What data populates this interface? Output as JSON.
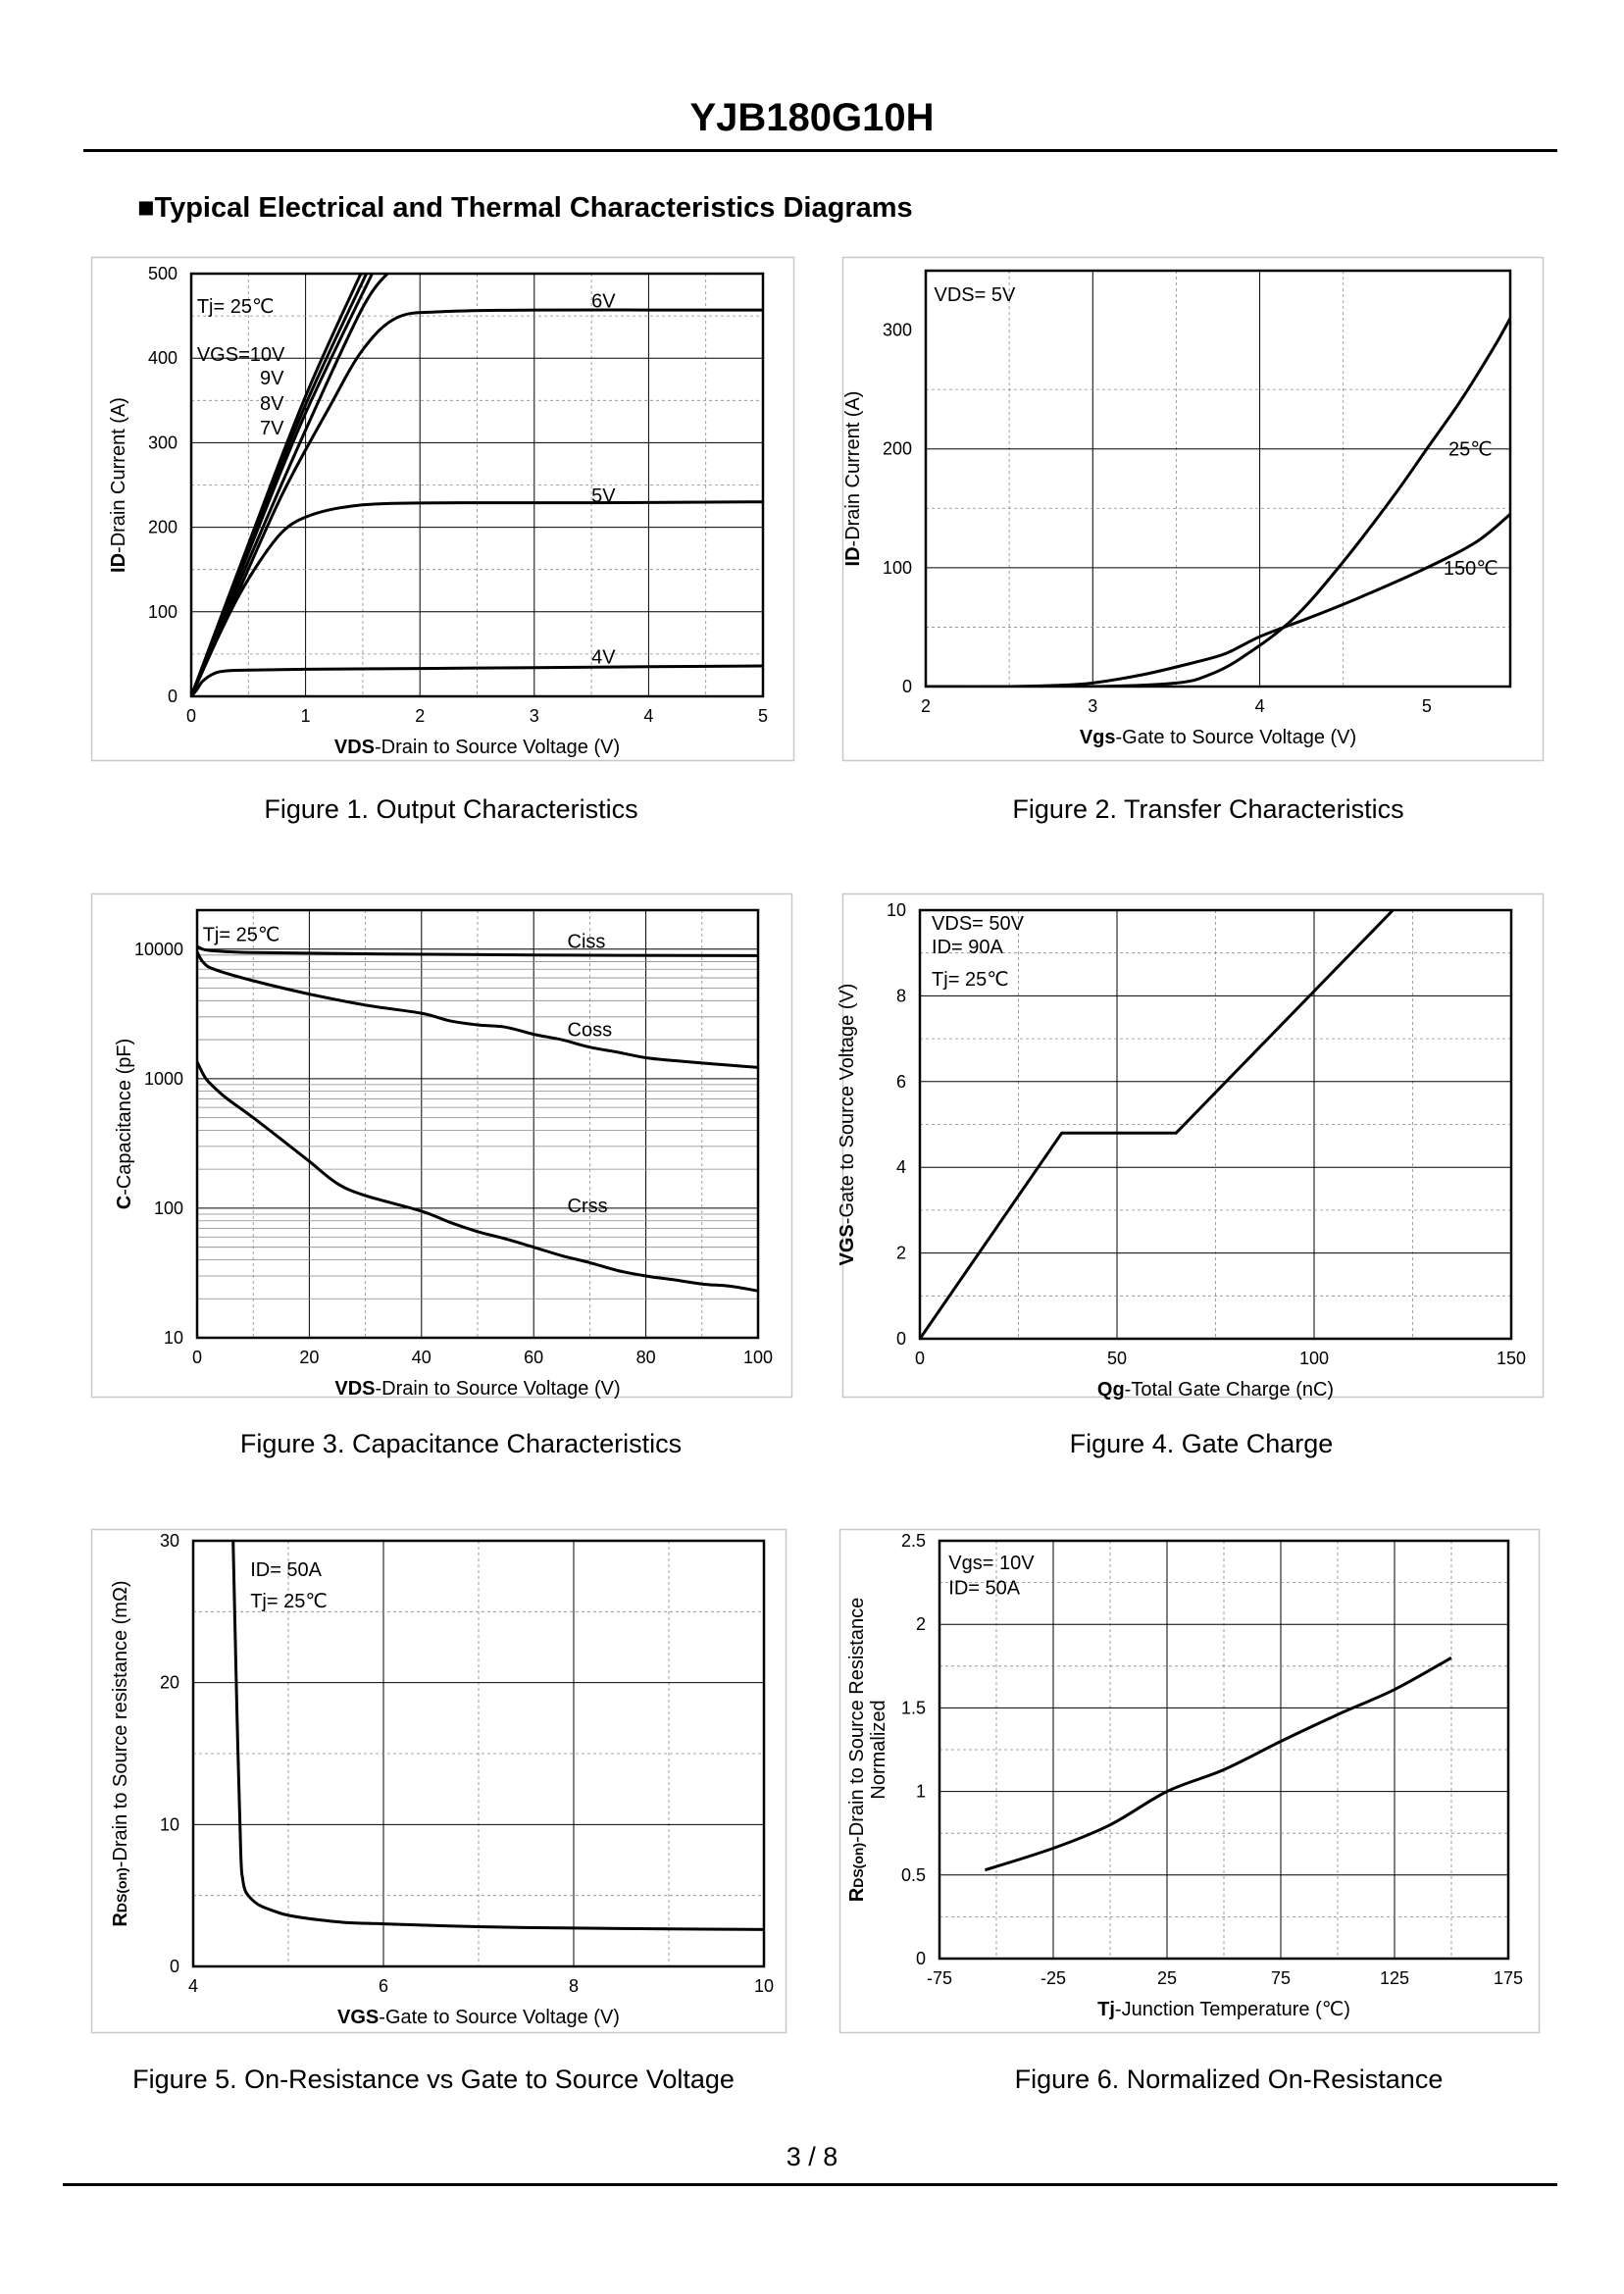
{
  "header": {
    "title": "YJB180G10H"
  },
  "section": {
    "heading": "■Typical Electrical and Thermal Characteristics Diagrams"
  },
  "footer": {
    "page": "3 / 8"
  },
  "chart_data": [
    {
      "id": "fig1",
      "type": "line",
      "caption": "Figure 1.  Output Characteristics",
      "xlabel": {
        "bold": "VDS",
        "rest": "-Drain to Source Voltage (V)"
      },
      "ylabel": {
        "bold": "ID",
        "rest": "-Drain Current (A)"
      },
      "xlim": [
        0,
        5
      ],
      "ylim": [
        0,
        500
      ],
      "xticks": [
        0,
        1,
        2,
        3,
        4,
        5
      ],
      "yticks": [
        0,
        100,
        200,
        300,
        400,
        500
      ],
      "grid": true,
      "annotations": [
        {
          "text": "Tj= 25℃",
          "x": 0.05,
          "y": 462,
          "anchor": "start"
        },
        {
          "text": "VGS=10V",
          "x": 0.05,
          "y": 405,
          "anchor": "start"
        },
        {
          "text": "9V",
          "x": 0.6,
          "y": 377,
          "anchor": "start"
        },
        {
          "text": "8V",
          "x": 0.6,
          "y": 347,
          "anchor": "start"
        },
        {
          "text": "7V",
          "x": 0.6,
          "y": 318,
          "anchor": "start"
        },
        {
          "text": "6V",
          "x": 3.5,
          "y": 468,
          "anchor": "start"
        },
        {
          "text": "5V",
          "x": 3.5,
          "y": 238,
          "anchor": "start"
        },
        {
          "text": "4V",
          "x": 3.5,
          "y": 47,
          "anchor": "start"
        }
      ],
      "series": [
        {
          "name": "VGS=10V",
          "x": [
            0,
            0.5,
            1,
            1.5
          ],
          "y": [
            0,
            180,
            355,
            505
          ]
        },
        {
          "name": "9V",
          "x": [
            0,
            0.5,
            1,
            1.55
          ],
          "y": [
            0,
            175,
            345,
            505
          ]
        },
        {
          "name": "8V",
          "x": [
            0,
            0.5,
            1,
            1.6
          ],
          "y": [
            0,
            170,
            335,
            505
          ]
        },
        {
          "name": "7V",
          "x": [
            0,
            0.5,
            1,
            1.5,
            1.75
          ],
          "y": [
            0,
            160,
            315,
            460,
            505
          ]
        },
        {
          "name": "6V",
          "x": [
            0,
            0.4,
            0.8,
            1.2,
            1.5,
            1.8,
            2.2,
            3,
            4,
            5
          ],
          "y": [
            0,
            120,
            240,
            340,
            410,
            448,
            455,
            457,
            457,
            457
          ]
        },
        {
          "name": "5V",
          "x": [
            0,
            0.2,
            0.4,
            0.6,
            0.8,
            1,
            1.3,
            1.7,
            2.5,
            3.5,
            5
          ],
          "y": [
            0,
            60,
            115,
            160,
            195,
            212,
            223,
            228,
            229,
            229,
            230
          ]
        },
        {
          "name": "4V",
          "x": [
            0,
            0.05,
            0.1,
            0.2,
            0.3,
            0.5,
            1,
            2,
            3,
            4,
            5
          ],
          "y": [
            0,
            8,
            18,
            27,
            30,
            31,
            32,
            33,
            34,
            35,
            36
          ]
        }
      ]
    },
    {
      "id": "fig2",
      "type": "line",
      "caption": "Figure 2.  Transfer Characteristics",
      "xlabel": {
        "bold": "Vgs",
        "rest": "-Gate to Source Voltage (V)"
      },
      "ylabel": {
        "bold": "ID",
        "rest": "-Drain Current (A)"
      },
      "xlim": [
        2,
        5.5
      ],
      "ylim": [
        0,
        350
      ],
      "xticks": [
        2,
        3,
        4,
        5
      ],
      "yticks": [
        0,
        100,
        200,
        300
      ],
      "grid": true,
      "annotations": [
        {
          "text": "VDS= 5V",
          "x": 2.05,
          "y": 330,
          "anchor": "start"
        },
        {
          "text": "25℃",
          "x": 5.13,
          "y": 200,
          "anchor": "start"
        },
        {
          "text": "150℃",
          "x": 5.1,
          "y": 100,
          "anchor": "start"
        }
      ],
      "series": [
        {
          "name": "25℃",
          "x": [
            2,
            3,
            3.5,
            3.7,
            3.9,
            4.2,
            4.5,
            4.8,
            5,
            5.2,
            5.4,
            5.5
          ],
          "y": [
            0,
            0,
            3,
            10,
            25,
            57,
            105,
            160,
            200,
            240,
            285,
            310
          ]
        },
        {
          "name": "150℃",
          "x": [
            2,
            2.5,
            2.8,
            3,
            3.3,
            3.6,
            3.8,
            4,
            4.3,
            4.6,
            5,
            5.3,
            5.5
          ],
          "y": [
            0,
            0,
            1,
            3,
            10,
            20,
            28,
            42,
            58,
            75,
            100,
            122,
            145
          ]
        }
      ]
    },
    {
      "id": "fig3",
      "type": "line",
      "caption": "Figure 3.  Capacitance Characteristics",
      "xlabel": {
        "bold": "VDS",
        "rest": "-Drain to Source Voltage (V)"
      },
      "ylabel": {
        "bold": "C",
        "rest": "-Capacitance (pF)"
      },
      "xlim": [
        0,
        100
      ],
      "ylim": [
        10,
        20000
      ],
      "yscale": "log",
      "xticks": [
        0,
        20,
        40,
        60,
        80,
        100
      ],
      "yticks": [
        10,
        100,
        1000,
        10000
      ],
      "grid": true,
      "annotations": [
        {
          "text": "Tj= 25℃",
          "x": 1,
          "y": 13000,
          "anchor": "start"
        },
        {
          "text": "Ciss",
          "x": 66,
          "y": 11500,
          "anchor": "start"
        },
        {
          "text": "Coss",
          "x": 66,
          "y": 2400,
          "anchor": "start"
        },
        {
          "text": "Crss",
          "x": 66,
          "y": 105,
          "anchor": "start"
        }
      ],
      "series": [
        {
          "name": "Ciss",
          "x": [
            0,
            1,
            3,
            10,
            30,
            60,
            100
          ],
          "y": [
            10500,
            10000,
            9700,
            9400,
            9200,
            9000,
            8900
          ]
        },
        {
          "name": "Coss",
          "x": [
            0,
            1,
            3,
            10,
            20,
            30,
            40,
            45,
            50,
            55,
            60,
            65,
            70,
            75,
            80,
            85,
            90,
            95,
            100
          ],
          "y": [
            9500,
            8000,
            7000,
            5700,
            4500,
            3700,
            3200,
            2800,
            2600,
            2500,
            2200,
            2000,
            1750,
            1600,
            1450,
            1380,
            1320,
            1270,
            1220
          ]
        },
        {
          "name": "Crss",
          "x": [
            0,
            1,
            2,
            5,
            10,
            15,
            20,
            25,
            30,
            40,
            45,
            50,
            55,
            60,
            65,
            70,
            75,
            80,
            85,
            90,
            95,
            100
          ],
          "y": [
            1350,
            1100,
            950,
            720,
            500,
            340,
            230,
            155,
            125,
            95,
            78,
            66,
            58,
            50,
            43,
            38,
            33,
            30,
            28,
            26,
            25,
            23
          ]
        }
      ]
    },
    {
      "id": "fig4",
      "type": "line",
      "caption": "Figure 4.  Gate Charge",
      "xlabel": {
        "bold": "Qg",
        "rest": "-Total Gate Charge (nC)"
      },
      "ylabel": {
        "bold": "VGS",
        "rest": "-Gate to Source Voltage (V)"
      },
      "xlim": [
        0,
        150
      ],
      "ylim": [
        0,
        10
      ],
      "xticks": [
        0,
        50,
        100,
        150
      ],
      "yticks": [
        0,
        2,
        4,
        6,
        8,
        10
      ],
      "grid": true,
      "annotations": [
        {
          "text": "VDS= 50V",
          "x": 3,
          "y": 9.7,
          "anchor": "start"
        },
        {
          "text": "ID= 90A",
          "x": 3,
          "y": 9.15,
          "anchor": "start"
        },
        {
          "text": "Tj= 25℃",
          "x": 3,
          "y": 8.4,
          "anchor": "start"
        }
      ],
      "series": [
        {
          "name": "VGS",
          "x": [
            0,
            36,
            65,
            120
          ],
          "y": [
            0,
            4.8,
            4.8,
            10
          ]
        }
      ]
    },
    {
      "id": "fig5",
      "type": "line",
      "caption": "Figure 5.  On-Resistance vs Gate to Source Voltage",
      "xlabel": {
        "bold": "VGS",
        "rest": "-Gate to Source Voltage (V)"
      },
      "ylabel": {
        "bold": "R",
        "sub": "DS(on)",
        "rest": "-Drain to Source resistance (mΩ)"
      },
      "xlim": [
        4,
        10
      ],
      "ylim": [
        0,
        30
      ],
      "xticks": [
        4,
        6,
        8,
        10
      ],
      "yticks": [
        0,
        10,
        20,
        30
      ],
      "grid": true,
      "annotations": [
        {
          "text": "ID= 50A",
          "x": 4.6,
          "y": 28,
          "anchor": "start"
        },
        {
          "text": "Tj= 25℃",
          "x": 4.6,
          "y": 25.8,
          "anchor": "start"
        }
      ],
      "series": [
        {
          "name": "RDS(on)",
          "x": [
            4.42,
            4.46,
            4.5,
            4.52,
            4.55,
            4.62,
            4.7,
            4.85,
            5,
            5.3,
            5.6,
            6,
            7,
            8,
            9,
            10
          ],
          "y": [
            30,
            18,
            8,
            6.2,
            5.3,
            4.7,
            4.3,
            3.9,
            3.6,
            3.3,
            3.1,
            3,
            2.8,
            2.7,
            2.65,
            2.6
          ]
        }
      ]
    },
    {
      "id": "fig6",
      "type": "line",
      "caption": "Figure 6.  Normalized On-Resistance",
      "xlabel": {
        "bold": "Tj",
        "rest": "-Junction  Temperature (℃)"
      },
      "ylabel": {
        "bold": "R",
        "sub": "DS(on)",
        "rest": "-Drain to Source Resistance",
        "line2": "Normalized"
      },
      "xlim": [
        -75,
        175
      ],
      "ylim": [
        0,
        2.5
      ],
      "xticks": [
        -75,
        -25,
        25,
        75,
        125,
        175
      ],
      "yticks": [
        0,
        0.5,
        1,
        1.5,
        2,
        2.5
      ],
      "grid": true,
      "annotations": [
        {
          "text": "Vgs= 10V",
          "x": -71,
          "y": 2.37,
          "anchor": "start"
        },
        {
          "text": "ID= 50A",
          "x": -71,
          "y": 2.22,
          "anchor": "start"
        }
      ],
      "series": [
        {
          "name": "RDS(on) normalized",
          "x": [
            -55,
            -25,
            0,
            25,
            50,
            75,
            100,
            125,
            150
          ],
          "y": [
            0.53,
            0.66,
            0.8,
            1,
            1.13,
            1.3,
            1.46,
            1.61,
            1.8
          ]
        }
      ]
    }
  ]
}
